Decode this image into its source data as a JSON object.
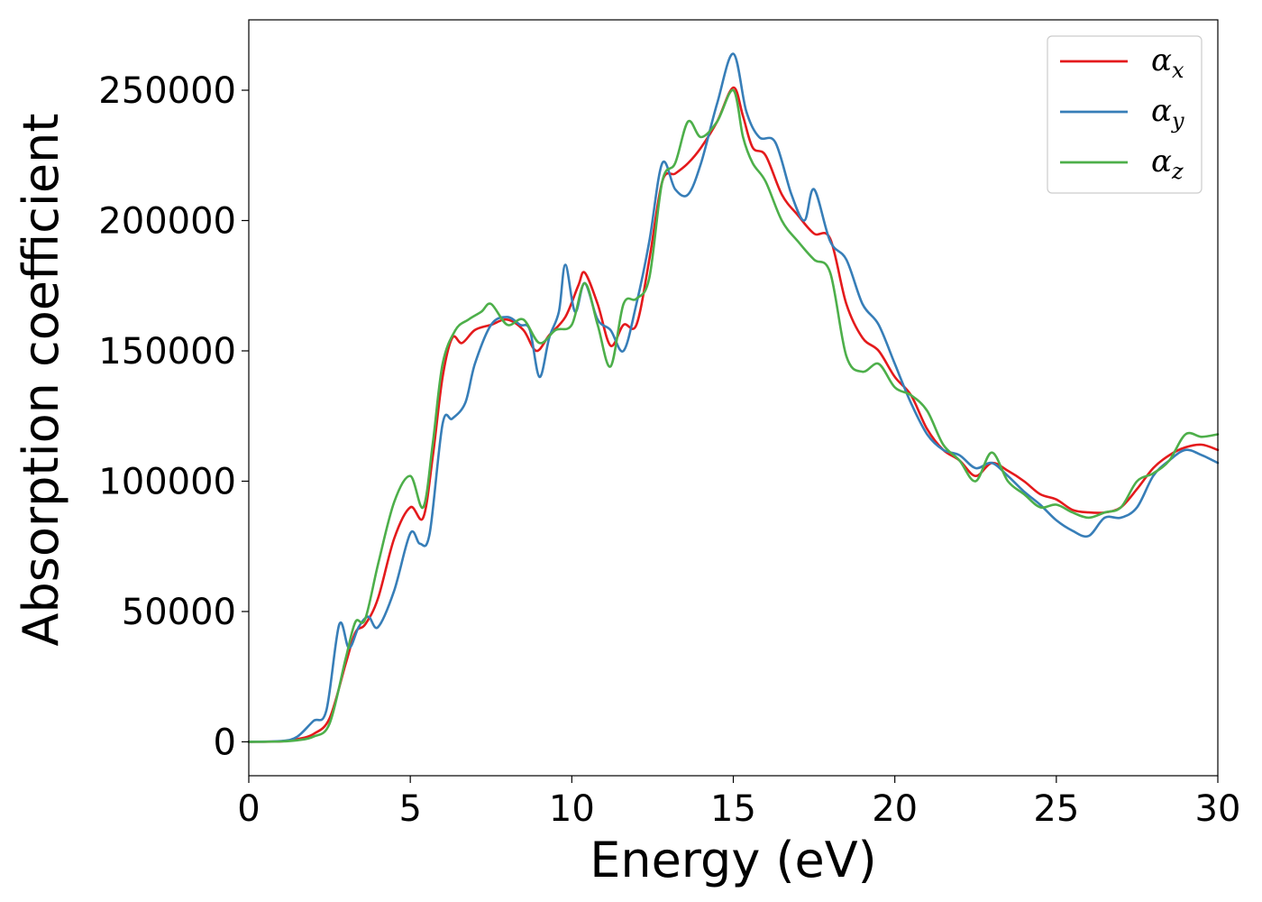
{
  "chart_data": {
    "type": "line",
    "title": "",
    "xlabel": "Energy (eV)",
    "ylabel": "Absorption coefficient",
    "xlim": [
      0,
      30
    ],
    "ylim": [
      -13000,
      277000
    ],
    "xticks": [
      0,
      5,
      10,
      15,
      20,
      25,
      30
    ],
    "yticks": [
      0,
      50000,
      100000,
      150000,
      200000,
      250000
    ],
    "grid": false,
    "legend_position": "top-right",
    "series": [
      {
        "name": "α_x",
        "label_main": "α",
        "label_sub": "x",
        "color": "#e41a1c",
        "points": [
          [
            0,
            0
          ],
          [
            1,
            200
          ],
          [
            1.5,
            1000
          ],
          [
            2,
            3000
          ],
          [
            2.5,
            9000
          ],
          [
            3,
            30000
          ],
          [
            3.3,
            42000
          ],
          [
            3.6,
            45000
          ],
          [
            4,
            55000
          ],
          [
            4.5,
            78000
          ],
          [
            5,
            90000
          ],
          [
            5.4,
            86000
          ],
          [
            5.7,
            110000
          ],
          [
            6,
            140000
          ],
          [
            6.3,
            155000
          ],
          [
            6.6,
            153000
          ],
          [
            7,
            158000
          ],
          [
            7.5,
            160000
          ],
          [
            8,
            162000
          ],
          [
            8.5,
            158000
          ],
          [
            8.9,
            150000
          ],
          [
            9.3,
            156000
          ],
          [
            9.8,
            163000
          ],
          [
            10.2,
            175000
          ],
          [
            10.4,
            180000
          ],
          [
            10.8,
            168000
          ],
          [
            11.2,
            152000
          ],
          [
            11.6,
            160000
          ],
          [
            12,
            160000
          ],
          [
            12.4,
            185000
          ],
          [
            12.8,
            215000
          ],
          [
            13.2,
            218000
          ],
          [
            13.6,
            222000
          ],
          [
            14,
            228000
          ],
          [
            14.5,
            238000
          ],
          [
            15,
            251000
          ],
          [
            15.3,
            240000
          ],
          [
            15.6,
            228000
          ],
          [
            16,
            225000
          ],
          [
            16.5,
            210000
          ],
          [
            17,
            202000
          ],
          [
            17.5,
            195000
          ],
          [
            18,
            193000
          ],
          [
            18.5,
            168000
          ],
          [
            19,
            155000
          ],
          [
            19.5,
            150000
          ],
          [
            20,
            140000
          ],
          [
            20.5,
            133000
          ],
          [
            21,
            120000
          ],
          [
            21.5,
            112000
          ],
          [
            22,
            108000
          ],
          [
            22.5,
            102000
          ],
          [
            23,
            107000
          ],
          [
            23.5,
            104000
          ],
          [
            24,
            100000
          ],
          [
            24.5,
            95000
          ],
          [
            25,
            93000
          ],
          [
            25.5,
            89000
          ],
          [
            26,
            88000
          ],
          [
            26.5,
            88000
          ],
          [
            27,
            90000
          ],
          [
            27.5,
            97000
          ],
          [
            28,
            105000
          ],
          [
            28.5,
            110000
          ],
          [
            29,
            113000
          ],
          [
            29.5,
            114000
          ],
          [
            30,
            112000
          ]
        ]
      },
      {
        "name": "α_y",
        "label_main": "α",
        "label_sub": "y",
        "color": "#377eb8",
        "points": [
          [
            0,
            0
          ],
          [
            1,
            300
          ],
          [
            1.5,
            2000
          ],
          [
            2,
            8000
          ],
          [
            2.4,
            12000
          ],
          [
            2.8,
            45000
          ],
          [
            3.1,
            36000
          ],
          [
            3.4,
            44000
          ],
          [
            3.7,
            48000
          ],
          [
            4,
            44000
          ],
          [
            4.5,
            58000
          ],
          [
            5,
            80000
          ],
          [
            5.3,
            76000
          ],
          [
            5.6,
            80000
          ],
          [
            6,
            122000
          ],
          [
            6.3,
            124000
          ],
          [
            6.7,
            130000
          ],
          [
            7,
            145000
          ],
          [
            7.5,
            160000
          ],
          [
            8,
            163000
          ],
          [
            8.4,
            160000
          ],
          [
            8.7,
            158000
          ],
          [
            9,
            140000
          ],
          [
            9.3,
            155000
          ],
          [
            9.6,
            165000
          ],
          [
            9.8,
            183000
          ],
          [
            10.1,
            165000
          ],
          [
            10.4,
            176000
          ],
          [
            10.8,
            162000
          ],
          [
            11.2,
            158000
          ],
          [
            11.6,
            150000
          ],
          [
            12,
            168000
          ],
          [
            12.4,
            192000
          ],
          [
            12.8,
            222000
          ],
          [
            13.2,
            212000
          ],
          [
            13.6,
            210000
          ],
          [
            14,
            222000
          ],
          [
            14.5,
            245000
          ],
          [
            15,
            264000
          ],
          [
            15.4,
            242000
          ],
          [
            15.8,
            232000
          ],
          [
            16.3,
            230000
          ],
          [
            16.8,
            210000
          ],
          [
            17.2,
            200000
          ],
          [
            17.5,
            212000
          ],
          [
            18,
            192000
          ],
          [
            18.5,
            185000
          ],
          [
            19,
            168000
          ],
          [
            19.5,
            160000
          ],
          [
            20,
            145000
          ],
          [
            20.5,
            130000
          ],
          [
            21,
            118000
          ],
          [
            21.5,
            112000
          ],
          [
            22,
            110000
          ],
          [
            22.5,
            105000
          ],
          [
            23,
            107000
          ],
          [
            23.5,
            102000
          ],
          [
            24,
            96000
          ],
          [
            24.5,
            91000
          ],
          [
            25,
            85000
          ],
          [
            25.5,
            81000
          ],
          [
            26,
            79000
          ],
          [
            26.5,
            86000
          ],
          [
            27,
            86000
          ],
          [
            27.5,
            90000
          ],
          [
            28,
            102000
          ],
          [
            28.5,
            108000
          ],
          [
            29,
            112000
          ],
          [
            29.5,
            110000
          ],
          [
            30,
            107000
          ]
        ]
      },
      {
        "name": "α_z",
        "label_main": "α",
        "label_sub": "z",
        "color": "#4daf4a",
        "points": [
          [
            0,
            0
          ],
          [
            1,
            150
          ],
          [
            1.5,
            600
          ],
          [
            2,
            2000
          ],
          [
            2.5,
            7000
          ],
          [
            3,
            32000
          ],
          [
            3.3,
            46000
          ],
          [
            3.6,
            47000
          ],
          [
            4,
            68000
          ],
          [
            4.5,
            92000
          ],
          [
            5,
            102000
          ],
          [
            5.4,
            90000
          ],
          [
            5.7,
            115000
          ],
          [
            6,
            145000
          ],
          [
            6.4,
            158000
          ],
          [
            6.8,
            162000
          ],
          [
            7.2,
            165000
          ],
          [
            7.5,
            168000
          ],
          [
            8,
            160000
          ],
          [
            8.5,
            162000
          ],
          [
            9,
            153000
          ],
          [
            9.5,
            158000
          ],
          [
            10,
            160000
          ],
          [
            10.4,
            176000
          ],
          [
            10.8,
            160000
          ],
          [
            11.2,
            144000
          ],
          [
            11.6,
            168000
          ],
          [
            12,
            170000
          ],
          [
            12.4,
            178000
          ],
          [
            12.8,
            215000
          ],
          [
            13.2,
            222000
          ],
          [
            13.6,
            238000
          ],
          [
            14,
            232000
          ],
          [
            14.5,
            238000
          ],
          [
            15,
            250000
          ],
          [
            15.3,
            232000
          ],
          [
            15.6,
            222000
          ],
          [
            16,
            215000
          ],
          [
            16.5,
            200000
          ],
          [
            17,
            192000
          ],
          [
            17.5,
            185000
          ],
          [
            18,
            180000
          ],
          [
            18.5,
            148000
          ],
          [
            19,
            142000
          ],
          [
            19.5,
            145000
          ],
          [
            20,
            136000
          ],
          [
            20.5,
            133000
          ],
          [
            21,
            127000
          ],
          [
            21.5,
            114000
          ],
          [
            22,
            108000
          ],
          [
            22.5,
            100000
          ],
          [
            23,
            111000
          ],
          [
            23.5,
            100000
          ],
          [
            24,
            95000
          ],
          [
            24.5,
            90000
          ],
          [
            25,
            91000
          ],
          [
            25.5,
            88000
          ],
          [
            26,
            86000
          ],
          [
            26.5,
            88000
          ],
          [
            27,
            90000
          ],
          [
            27.5,
            100000
          ],
          [
            28,
            103000
          ],
          [
            28.5,
            108000
          ],
          [
            29,
            118000
          ],
          [
            29.5,
            117000
          ],
          [
            30,
            118000
          ]
        ]
      }
    ]
  }
}
